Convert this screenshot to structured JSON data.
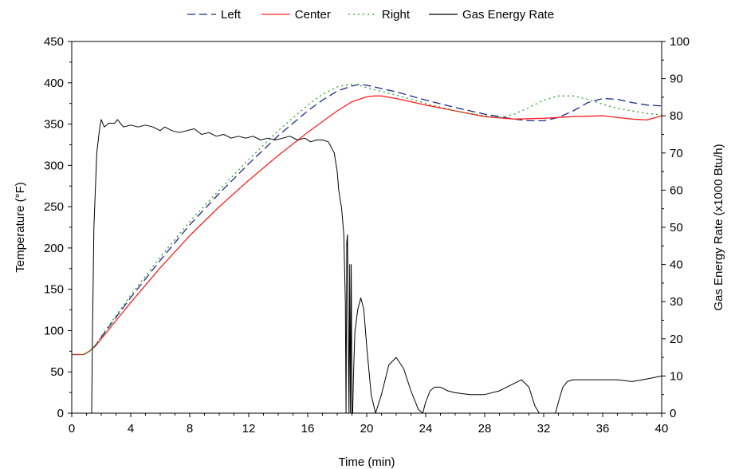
{
  "chart_data": {
    "type": "line",
    "title": "",
    "xlabel": "Time (min)",
    "ylabel": "Temperature (°F)",
    "y2label": "Gas Energy Rate (x1000 Btu/h)",
    "xlim": [
      0,
      40
    ],
    "ylim": [
      0,
      450
    ],
    "y2lim": [
      0,
      100
    ],
    "xticks": [
      0,
      4,
      8,
      12,
      16,
      20,
      24,
      28,
      32,
      36,
      40
    ],
    "yticks": [
      0,
      50,
      100,
      150,
      200,
      250,
      300,
      350,
      400,
      450
    ],
    "y2ticks": [
      0,
      10,
      20,
      30,
      40,
      50,
      60,
      70,
      80,
      90,
      100
    ],
    "grid": false,
    "legend_position": "top",
    "series": [
      {
        "name": "Left",
        "axis": "left",
        "color": "#1f2a8c",
        "dash": "dashed",
        "x": [
          0,
          0.8,
          1.2,
          1.6,
          2,
          3,
          4,
          6,
          8,
          10,
          12,
          14,
          16,
          17,
          18,
          19,
          19.5,
          20,
          21,
          22,
          24,
          26,
          28,
          30,
          31,
          32,
          33,
          34,
          35,
          36,
          37,
          38,
          39,
          40
        ],
        "y": [
          71,
          71,
          75,
          82,
          92,
          116,
          140,
          185,
          228,
          266,
          302,
          336,
          366,
          379,
          390,
          396,
          398,
          397,
          393,
          389,
          379,
          370,
          362,
          356,
          354,
          354,
          358,
          366,
          376,
          381,
          380,
          376,
          373,
          372
        ]
      },
      {
        "name": "Center",
        "axis": "left",
        "color": "#ff2020",
        "dash": "solid",
        "x": [
          0,
          0.8,
          1.2,
          1.6,
          2,
          3,
          4,
          6,
          8,
          10,
          12,
          14,
          16,
          18,
          19,
          20,
          20.5,
          21,
          22,
          24,
          26,
          28,
          30,
          32,
          34,
          36,
          38,
          39,
          40
        ],
        "y": [
          71,
          71,
          75,
          81,
          90,
          112,
          134,
          176,
          215,
          250,
          282,
          312,
          340,
          366,
          377,
          383,
          384,
          384,
          381,
          373,
          366,
          359,
          356,
          357,
          359,
          360,
          356,
          355,
          360
        ]
      },
      {
        "name": "Right",
        "axis": "left",
        "color": "#22a022",
        "dash": "dotted",
        "x": [
          0,
          0.8,
          1.2,
          1.6,
          2,
          3,
          4,
          6,
          8,
          10,
          12,
          14,
          16,
          17,
          18,
          18.5,
          19,
          19.5,
          20,
          22,
          24,
          26,
          28,
          29,
          30,
          31,
          32,
          33,
          34,
          35,
          36,
          37,
          38,
          39,
          40
        ],
        "y": [
          71,
          71,
          75,
          82,
          93,
          118,
          143,
          189,
          232,
          270,
          307,
          342,
          373,
          386,
          395,
          397,
          398,
          397,
          394,
          385,
          375,
          366,
          360,
          358,
          362,
          370,
          379,
          384,
          384,
          380,
          374,
          369,
          366,
          363,
          361
        ]
      },
      {
        "name": "Gas Energy Rate",
        "axis": "right",
        "color": "#000000",
        "dash": "solid",
        "x": [
          0,
          1.35,
          1.4,
          1.5,
          1.7,
          1.9,
          2.0,
          2.2,
          2.5,
          2.9,
          3.1,
          3.5,
          4.0,
          4.5,
          5.0,
          5.5,
          6.0,
          6.3,
          6.8,
          7.3,
          7.8,
          8.3,
          8.8,
          9.3,
          9.8,
          10.3,
          10.8,
          11.3,
          11.8,
          12.3,
          12.8,
          13.3,
          13.8,
          14.3,
          14.8,
          15.3,
          15.8,
          16.2,
          16.6,
          17.0,
          17.4,
          17.8,
          18.0,
          18.1,
          18.3,
          18.45,
          18.55,
          18.6,
          18.65,
          18.7,
          18.75,
          18.8,
          18.85,
          18.9,
          18.95,
          19.0,
          19.05,
          19.1,
          19.2,
          19.4,
          19.6,
          19.8,
          20.0,
          20.3,
          20.6,
          21.0,
          21.5,
          22.0,
          22.5,
          23.0,
          23.5,
          23.8,
          24.0,
          24.3,
          24.6,
          25.0,
          25.5,
          26.0,
          27.0,
          28.0,
          29.0,
          30.0,
          30.5,
          31.0,
          31.4,
          31.7,
          32.0,
          32.5,
          32.8,
          33.0,
          33.3,
          33.6,
          34.0,
          35.0,
          36.0,
          37.0,
          38.0,
          39.0,
          40.0
        ],
        "y": [
          0,
          0,
          20,
          50,
          70,
          77,
          79,
          77,
          78,
          78,
          79,
          77,
          77.5,
          77,
          77.5,
          77,
          76,
          77,
          76,
          75.5,
          76,
          76.5,
          75,
          75.5,
          74.5,
          75,
          74,
          74.5,
          74,
          74.5,
          73.5,
          74,
          73.5,
          74,
          74.5,
          73.5,
          74,
          73,
          73.5,
          73.5,
          73,
          70,
          65,
          60,
          55,
          48,
          30,
          0,
          46,
          48,
          20,
          0,
          40,
          0,
          40,
          0,
          0,
          10,
          22,
          28,
          31,
          28,
          18,
          5,
          0,
          5,
          13,
          15,
          12,
          6,
          1,
          0,
          3,
          6,
          7,
          7,
          6,
          5.5,
          5,
          5,
          6,
          8,
          9,
          7,
          2,
          0,
          0,
          0,
          0,
          3,
          7,
          8.5,
          9,
          9,
          9,
          9,
          8.5,
          9.2,
          10
        ]
      }
    ]
  }
}
